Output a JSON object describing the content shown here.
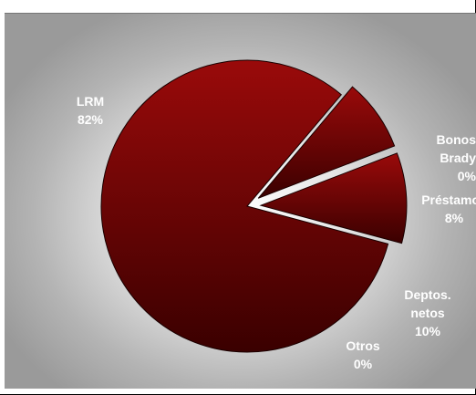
{
  "chart_data": {
    "type": "pie",
    "exploded": true,
    "slices": [
      {
        "label_lines": [
          "LRM",
          "82%"
        ],
        "value": 82
      },
      {
        "label_lines": [
          "Bonos",
          "Brady",
          "0%"
        ],
        "value": 0
      },
      {
        "label_lines": [
          "Préstamos",
          "8%"
        ],
        "value": 8
      },
      {
        "label_lines": [
          "Deptos.",
          "netos",
          "10%"
        ],
        "value": 10
      },
      {
        "label_lines": [
          "Otros",
          "0%"
        ],
        "value": 0
      }
    ],
    "colors": {
      "slice_light": "#9a0a0a",
      "slice_dark": "#3a0000",
      "label": "#ffffff"
    }
  }
}
